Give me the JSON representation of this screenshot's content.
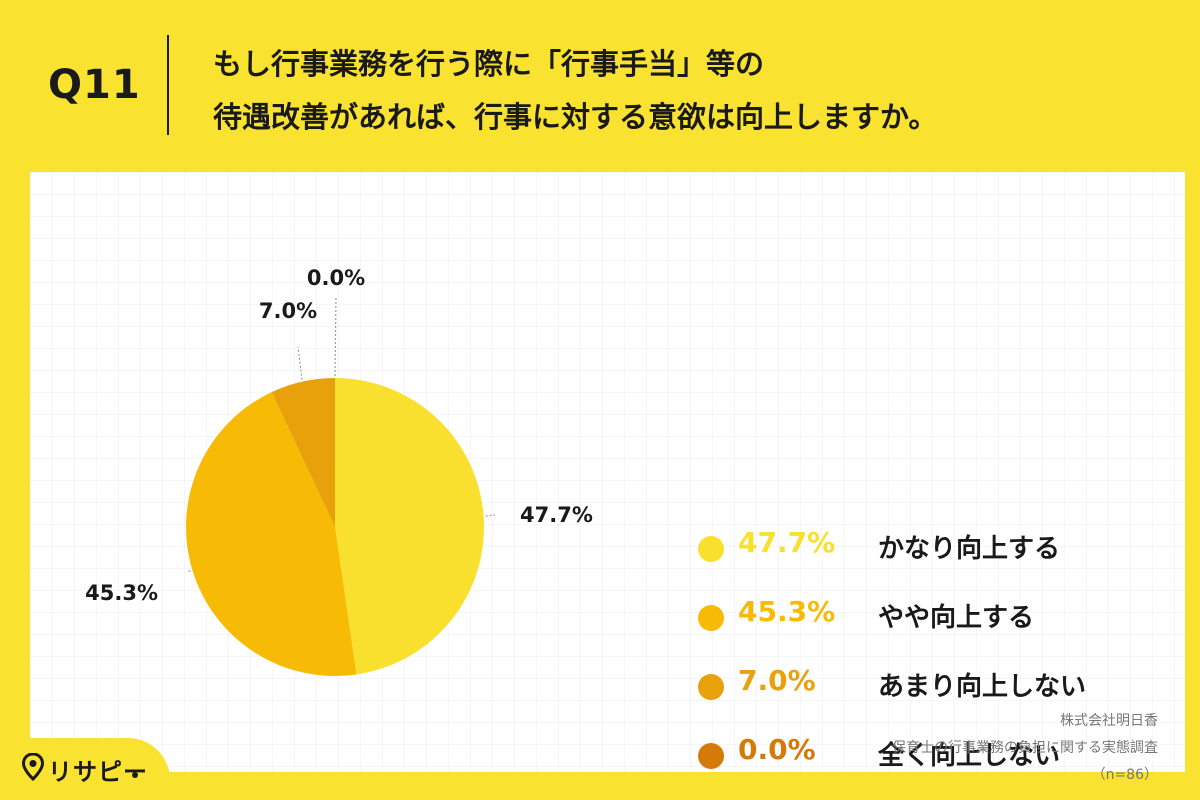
{
  "header": {
    "question_number": "Q11",
    "title_line1": "もし行事業務を行う際に「行事手当」等の",
    "title_line2": "待遇改善があれば、行事に対する意欲は向上しますか。"
  },
  "chart_data": {
    "type": "pie",
    "categories": [
      "かなり向上する",
      "やや向上する",
      "あまり向上しない",
      "全く向上しない"
    ],
    "values": [
      47.7,
      45.3,
      7.0,
      0.0
    ],
    "value_labels": [
      "47.7%",
      "45.3%",
      "7.0%",
      "0.0%"
    ],
    "colors": [
      "#F9E02F",
      "#F7BA05",
      "#E8A00B",
      "#D47A08"
    ],
    "start_angle_deg": 0,
    "direction": "clockwise",
    "legend_position": "right"
  },
  "legend": {
    "items": [
      {
        "value": "47.7%",
        "label": "かなり向上する",
        "color": "#F9E02F"
      },
      {
        "value": "45.3%",
        "label": "やや向上する",
        "color": "#F7BA05"
      },
      {
        "value": "7.0%",
        "label": "あまり向上しない",
        "color": "#E8A00B"
      },
      {
        "value": "0.0%",
        "label": "全く向上しない",
        "color": "#D47A08"
      }
    ]
  },
  "source": {
    "company": "株式会社明日香",
    "survey": "保育士の行事業務の負担に関する実態調査",
    "sample": "（n=86）"
  },
  "logo": {
    "text": "リサピー",
    "icon": "location-pin-icon"
  }
}
